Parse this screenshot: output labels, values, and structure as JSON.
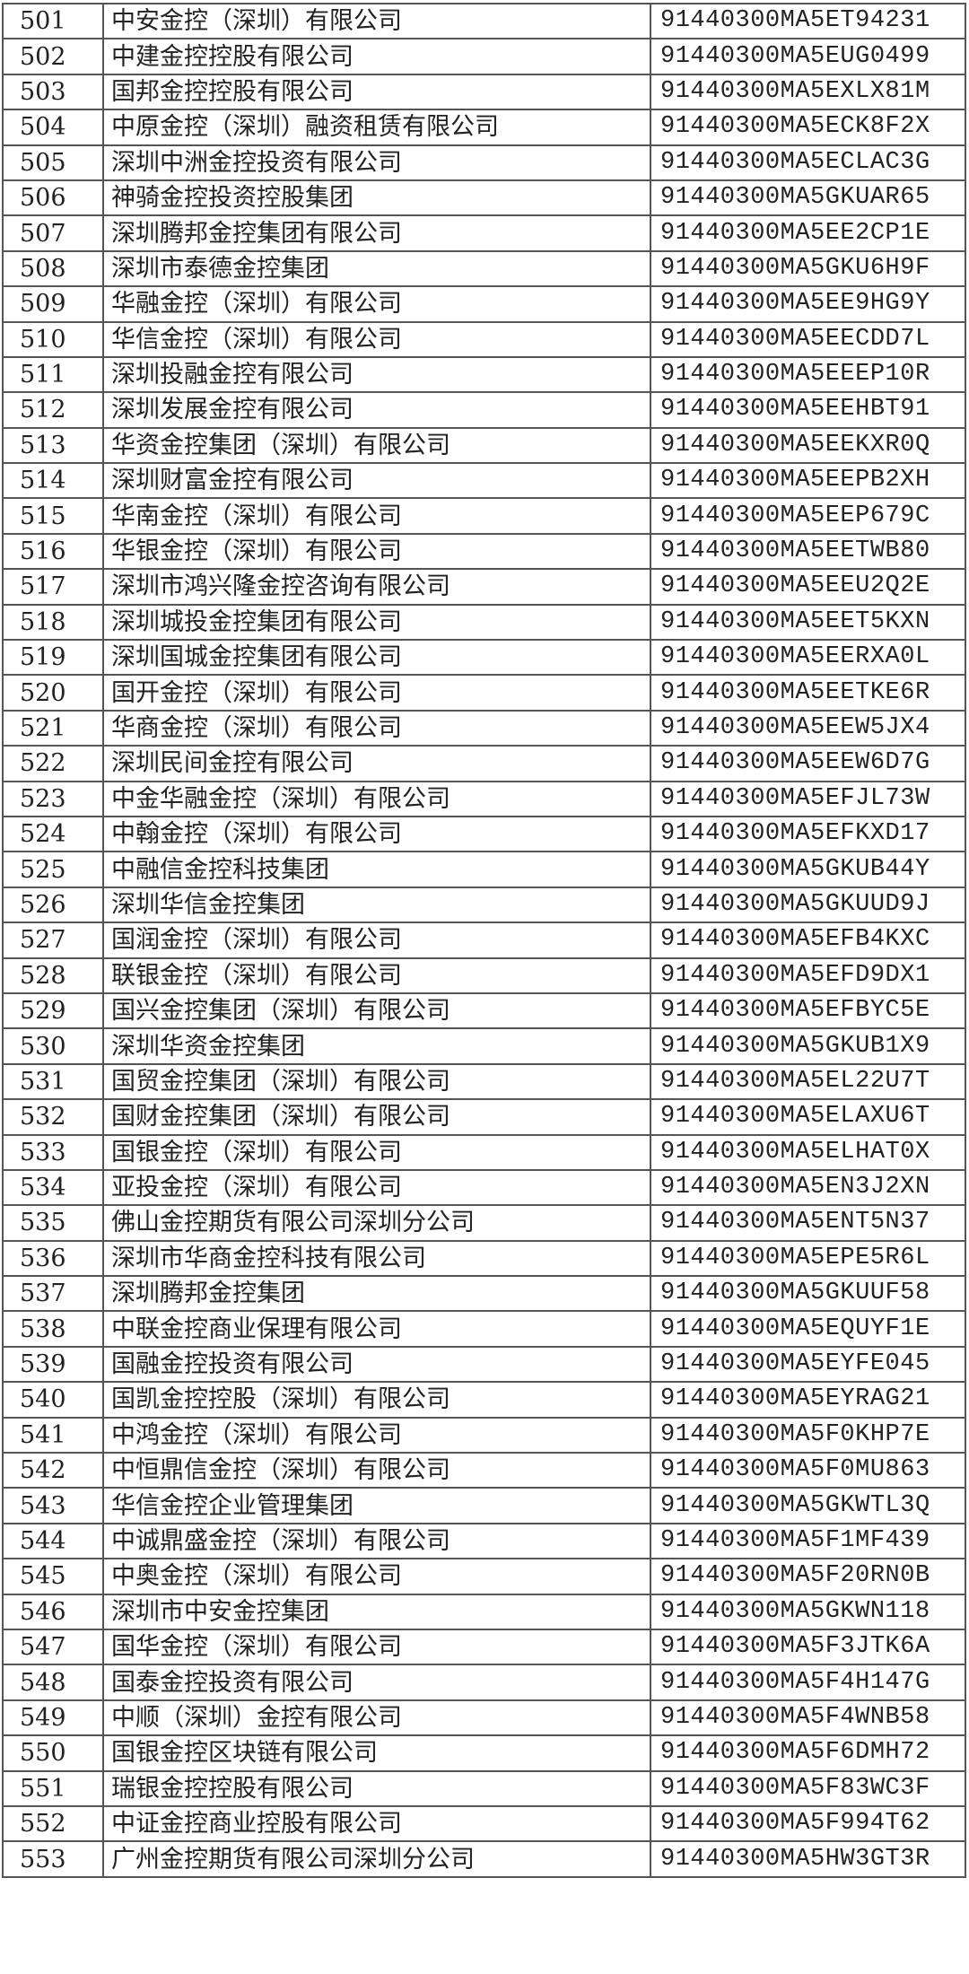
{
  "rows": [
    {
      "no": "501",
      "name": "中安金控（深圳）有限公司",
      "code": "91440300MA5ET94231"
    },
    {
      "no": "502",
      "name": "中建金控控股有限公司",
      "code": "91440300MA5EUG0499"
    },
    {
      "no": "503",
      "name": "国邦金控控股有限公司",
      "code": "91440300MA5EXLX81M"
    },
    {
      "no": "504",
      "name": "中原金控（深圳）融资租赁有限公司",
      "code": "91440300MA5ECK8F2X"
    },
    {
      "no": "505",
      "name": "深圳中洲金控投资有限公司",
      "code": "91440300MA5ECLAC3G"
    },
    {
      "no": "506",
      "name": "神骑金控投资控股集团",
      "code": "91440300MA5GKUAR65"
    },
    {
      "no": "507",
      "name": "深圳腾邦金控集团有限公司",
      "code": "91440300MA5EE2CP1E"
    },
    {
      "no": "508",
      "name": "深圳市泰德金控集团",
      "code": "91440300MA5GKU6H9F"
    },
    {
      "no": "509",
      "name": "华融金控（深圳）有限公司",
      "code": "91440300MA5EE9HG9Y"
    },
    {
      "no": "510",
      "name": "华信金控（深圳）有限公司",
      "code": "91440300MA5EECDD7L"
    },
    {
      "no": "511",
      "name": "深圳投融金控有限公司",
      "code": "91440300MA5EEEP10R"
    },
    {
      "no": "512",
      "name": "深圳发展金控有限公司",
      "code": "91440300MA5EEHBT91"
    },
    {
      "no": "513",
      "name": "华资金控集团（深圳）有限公司",
      "code": "91440300MA5EEKXR0Q"
    },
    {
      "no": "514",
      "name": "深圳财富金控有限公司",
      "code": "91440300MA5EEPB2XH"
    },
    {
      "no": "515",
      "name": "华南金控（深圳）有限公司",
      "code": "91440300MA5EEP679C"
    },
    {
      "no": "516",
      "name": "华银金控（深圳）有限公司",
      "code": "91440300MA5EETWB80"
    },
    {
      "no": "517",
      "name": "深圳市鸿兴隆金控咨询有限公司",
      "code": "91440300MA5EEU2Q2E"
    },
    {
      "no": "518",
      "name": "深圳城投金控集团有限公司",
      "code": "91440300MA5EET5KXN"
    },
    {
      "no": "519",
      "name": "深圳国城金控集团有限公司",
      "code": "91440300MA5EERXA0L"
    },
    {
      "no": "520",
      "name": "国开金控（深圳）有限公司",
      "code": "91440300MA5EETKE6R"
    },
    {
      "no": "521",
      "name": "华商金控（深圳）有限公司",
      "code": "91440300MA5EEW5JX4"
    },
    {
      "no": "522",
      "name": "深圳民间金控有限公司",
      "code": "91440300MA5EEW6D7G"
    },
    {
      "no": "523",
      "name": "中金华融金控（深圳）有限公司",
      "code": "91440300MA5EFJL73W"
    },
    {
      "no": "524",
      "name": "中翰金控（深圳）有限公司",
      "code": "91440300MA5EFKXD17"
    },
    {
      "no": "525",
      "name": "中融信金控科技集团",
      "code": "91440300MA5GKUB44Y"
    },
    {
      "no": "526",
      "name": "深圳华信金控集团",
      "code": "91440300MA5GKUUD9J"
    },
    {
      "no": "527",
      "name": "国润金控（深圳）有限公司",
      "code": "91440300MA5EFB4KXC"
    },
    {
      "no": "528",
      "name": "联银金控（深圳）有限公司",
      "code": "91440300MA5EFD9DX1"
    },
    {
      "no": "529",
      "name": "国兴金控集团（深圳）有限公司",
      "code": "91440300MA5EFBYC5E"
    },
    {
      "no": "530",
      "name": "深圳华资金控集团",
      "code": "91440300MA5GKUB1X9"
    },
    {
      "no": "531",
      "name": "国贸金控集团（深圳）有限公司",
      "code": "91440300MA5EL22U7T"
    },
    {
      "no": "532",
      "name": "国财金控集团（深圳）有限公司",
      "code": "91440300MA5ELAXU6T"
    },
    {
      "no": "533",
      "name": "国银金控（深圳）有限公司",
      "code": "91440300MA5ELHAT0X"
    },
    {
      "no": "534",
      "name": "亚投金控（深圳）有限公司",
      "code": "91440300MA5EN3J2XN"
    },
    {
      "no": "535",
      "name": "佛山金控期货有限公司深圳分公司",
      "code": "91440300MA5ENT5N37"
    },
    {
      "no": "536",
      "name": "深圳市华商金控科技有限公司",
      "code": "91440300MA5EPE5R6L"
    },
    {
      "no": "537",
      "name": "深圳腾邦金控集团",
      "code": "91440300MA5GKUUF58"
    },
    {
      "no": "538",
      "name": "中联金控商业保理有限公司",
      "code": "91440300MA5EQUYF1E"
    },
    {
      "no": "539",
      "name": "国融金控投资有限公司",
      "code": "91440300MA5EYFE045"
    },
    {
      "no": "540",
      "name": "国凯金控控股（深圳）有限公司",
      "code": "91440300MA5EYRAG21"
    },
    {
      "no": "541",
      "name": "中鸿金控（深圳）有限公司",
      "code": "91440300MA5F0KHP7E"
    },
    {
      "no": "542",
      "name": "中恒鼎信金控（深圳）有限公司",
      "code": "91440300MA5F0MU863"
    },
    {
      "no": "543",
      "name": "华信金控企业管理集团",
      "code": "91440300MA5GKWTL3Q"
    },
    {
      "no": "544",
      "name": "中诚鼎盛金控（深圳）有限公司",
      "code": "91440300MA5F1MF439"
    },
    {
      "no": "545",
      "name": "中奥金控（深圳）有限公司",
      "code": "91440300MA5F20RN0B"
    },
    {
      "no": "546",
      "name": "深圳市中安金控集团",
      "code": "91440300MA5GKWN118"
    },
    {
      "no": "547",
      "name": "国华金控（深圳）有限公司",
      "code": "91440300MA5F3JTK6A"
    },
    {
      "no": "548",
      "name": "国泰金控投资有限公司",
      "code": "91440300MA5F4H147G"
    },
    {
      "no": "549",
      "name": "中顺（深圳）金控有限公司",
      "code": "91440300MA5F4WNB58"
    },
    {
      "no": "550",
      "name": "国银金控区块链有限公司",
      "code": "91440300MA5F6DMH72"
    },
    {
      "no": "551",
      "name": "瑞银金控控股有限公司",
      "code": "91440300MA5F83WC3F"
    },
    {
      "no": "552",
      "name": "中证金控商业控股有限公司",
      "code": "91440300MA5F994T62"
    },
    {
      "no": "553",
      "name": "广州金控期货有限公司深圳分公司",
      "code": "91440300MA5HW3GT3R"
    }
  ]
}
